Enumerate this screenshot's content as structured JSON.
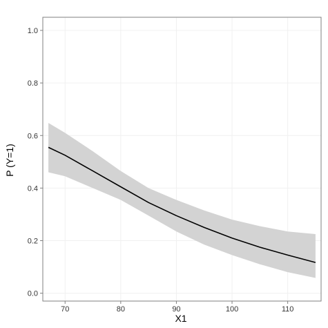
{
  "chart_data": {
    "type": "line",
    "title": "",
    "xlabel": "X1",
    "ylabel": "P (Y=1)",
    "xlim": [
      66,
      116
    ],
    "ylim": [
      -0.03,
      1.05
    ],
    "x_ticks": [
      70,
      80,
      90,
      100,
      110
    ],
    "y_ticks": [
      0.0,
      0.2,
      0.4,
      0.6,
      0.8,
      1.0
    ],
    "x_tick_labels": [
      "70",
      "80",
      "90",
      "100",
      "110"
    ],
    "y_tick_labels": [
      "0.0",
      "0.2",
      "0.4",
      "0.6",
      "0.8",
      "1.0"
    ],
    "grid": true,
    "series": [
      {
        "x": [
          67,
          70,
          75,
          80,
          85,
          90,
          95,
          100,
          105,
          110,
          115
        ],
        "y": [
          0.555,
          0.525,
          0.465,
          0.405,
          0.345,
          0.295,
          0.25,
          0.21,
          0.175,
          0.145,
          0.117
        ],
        "lower": [
          0.46,
          0.445,
          0.4,
          0.355,
          0.295,
          0.235,
          0.185,
          0.145,
          0.11,
          0.08,
          0.058
        ],
        "upper": [
          0.648,
          0.61,
          0.54,
          0.465,
          0.4,
          0.355,
          0.315,
          0.28,
          0.255,
          0.235,
          0.225
        ]
      }
    ],
    "colors": {
      "line": "#000000",
      "band": "#d3d3d3",
      "panel": "#ffffff",
      "grid": "#f0f0f0",
      "border": "#7f7f7f"
    }
  }
}
